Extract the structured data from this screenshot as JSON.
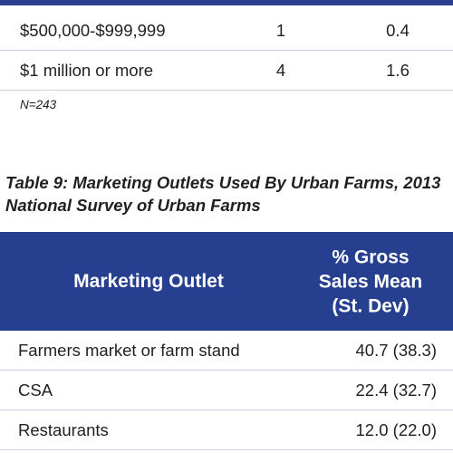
{
  "top_table": {
    "rows": [
      {
        "range": "$500,000-$999,999",
        "count": "1",
        "percent": "0.4"
      },
      {
        "range": "$1 million or more",
        "count": "4",
        "percent": "1.6"
      }
    ],
    "note": "N=243"
  },
  "table9": {
    "caption_line1": "Table 9: Marketing Outlets Used By Urban Farms, 2013",
    "caption_line2": "National Survey of Urban Farms",
    "header": {
      "col1": "Marketing Outlet",
      "col2_line1": "% Gross",
      "col2_line2": "Sales Mean",
      "col2_line3": "(St. Dev)"
    },
    "rows": [
      {
        "outlet": "Farmers market or farm stand",
        "value": "40.7 (38.3)"
      },
      {
        "outlet": "CSA",
        "value": "22.4 (32.7)"
      },
      {
        "outlet": "Restaurants",
        "value": "12.0 (22.0)"
      }
    ]
  },
  "colors": {
    "header_blue": "#26408f",
    "row_divider": "#c9d3e8",
    "text": "#231f20"
  }
}
